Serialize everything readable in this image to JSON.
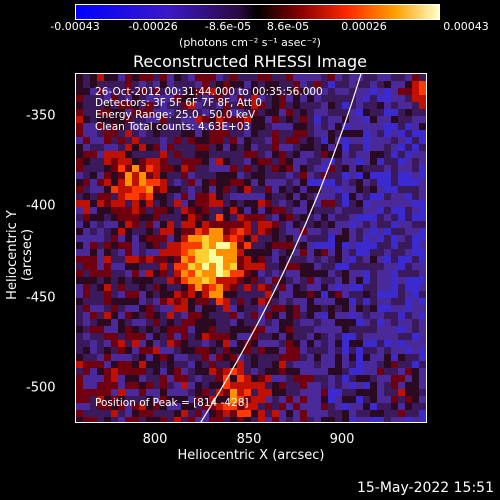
{
  "colorbar": {
    "ticks": [
      "-0.00043",
      "-0.00026",
      "-8.6e-05",
      "8.6e-05",
      "0.00026",
      "0.00043"
    ],
    "units": "(photons cm⁻² s⁻¹ asec⁻²)"
  },
  "chart_data": {
    "type": "heatmap",
    "title": "Reconstructed RHESSI Image",
    "xlabel": "Heliocentric X (arcsec)",
    "ylabel": "Heliocentric Y (arcsec)",
    "xlim": [
      760,
      945
    ],
    "ylim": [
      -520,
      -330
    ],
    "xticks": [
      "800",
      "850",
      "900"
    ],
    "yticks": [
      "-350",
      "-400",
      "-450",
      "-500"
    ],
    "peak": [
      814,
      -428
    ],
    "colorscale_range": [
      -0.00043,
      0.00043
    ]
  },
  "annotations": {
    "time_range": "26-Oct-2012 00:31:44.000 to 00:35:56.000",
    "detectors": "Detectors: 3F 5F 6F 7F 8F, Att 0",
    "energy": "Energy Range: 25.0 - 50.0 keV",
    "method": "Clean    Total counts: 4.63E+03",
    "peak_position": "Position of Peak = [814 -428]"
  },
  "footer_timestamp": "15-May-2022 15:51"
}
